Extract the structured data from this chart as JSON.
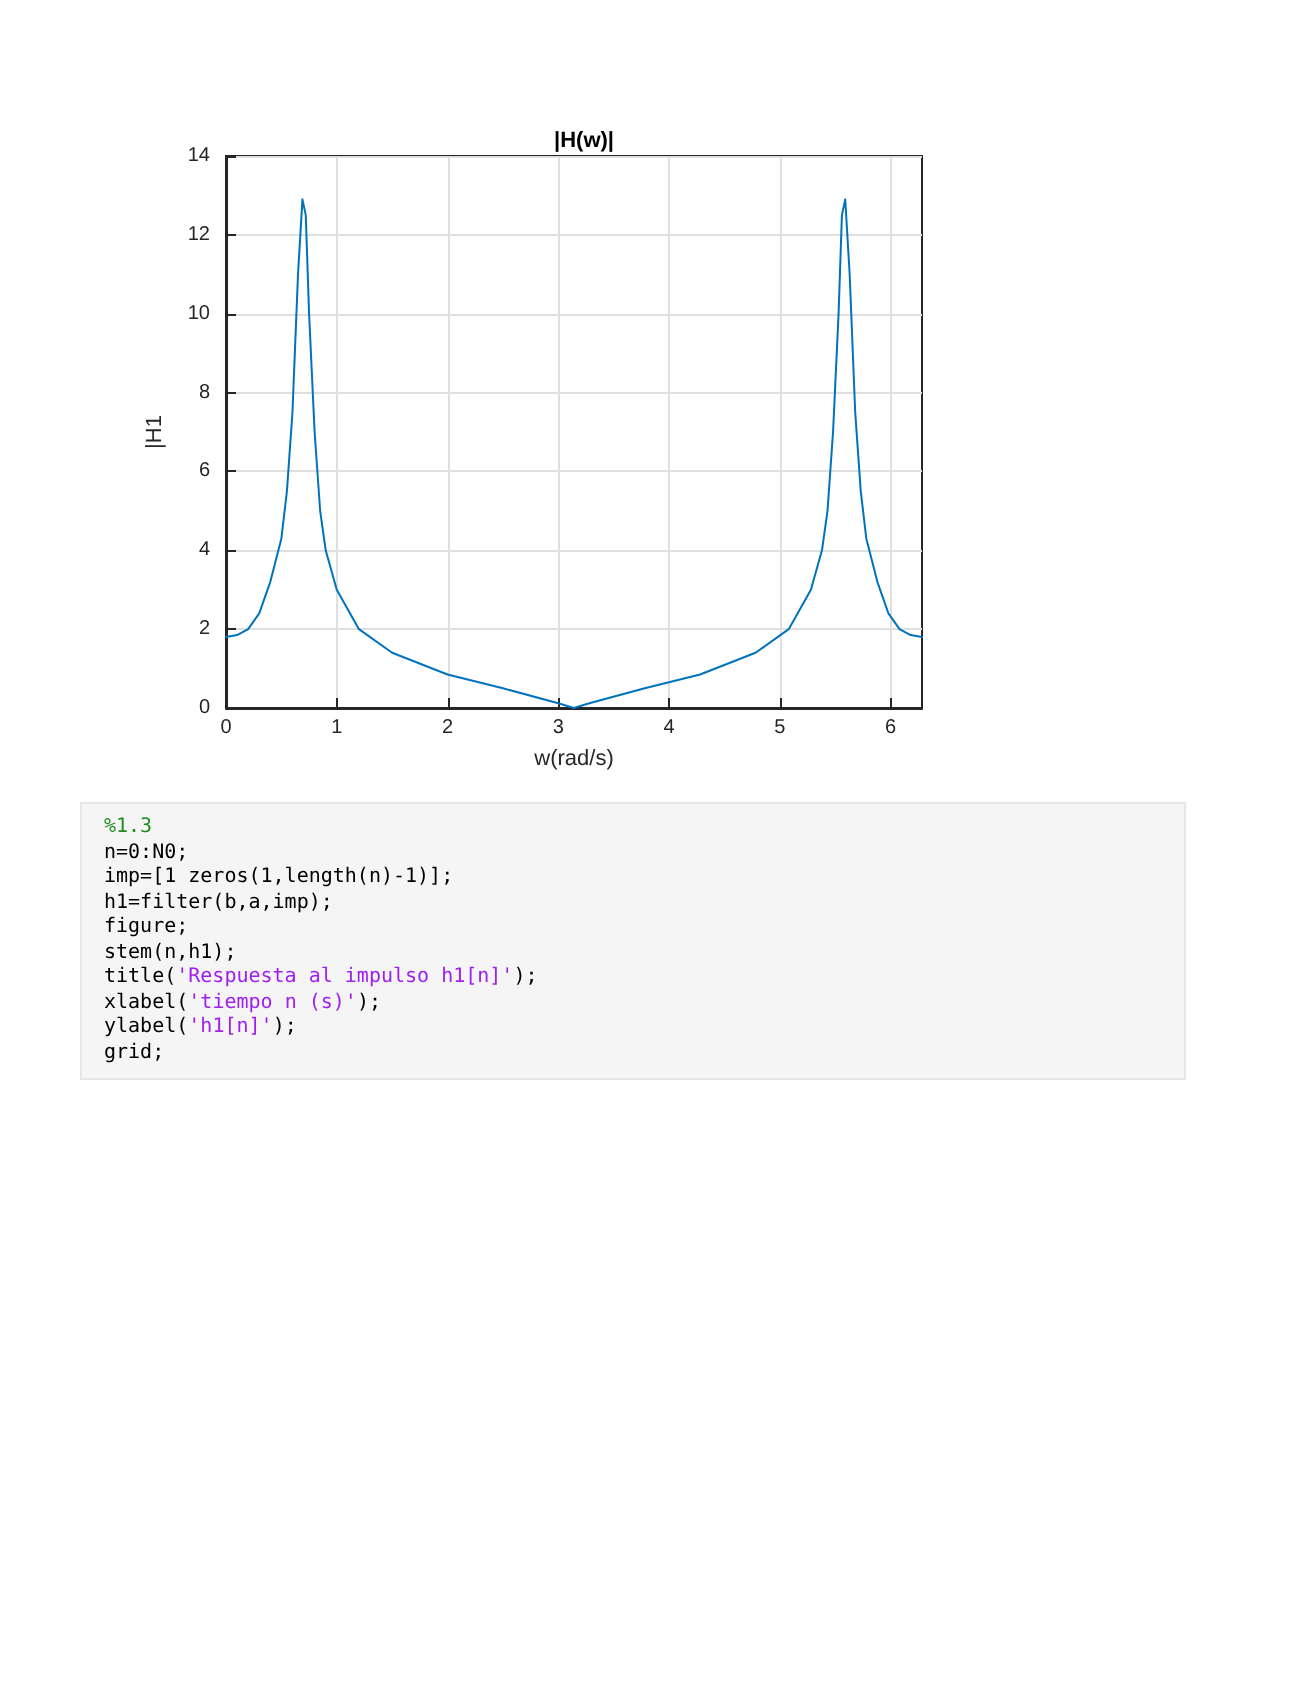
{
  "chart_data": {
    "type": "line",
    "title": "|H(w)|",
    "xlabel": "w(rad/s)",
    "ylabel": "|H1",
    "xlim": [
      0,
      6.283
    ],
    "xticks": [
      0,
      1,
      2,
      3,
      4,
      5,
      6
    ],
    "ylim": [
      0,
      14
    ],
    "yticks": [
      0,
      2,
      4,
      6,
      8,
      10,
      12,
      14
    ],
    "grid": true,
    "marker": "none",
    "line_style": "solid",
    "series": [
      {
        "color": "#0072bd",
        "x": [
          0,
          0.1,
          0.2,
          0.3,
          0.4,
          0.5,
          0.55,
          0.6,
          0.65,
          0.69,
          0.72,
          0.75,
          0.8,
          0.85,
          0.9,
          1.0,
          1.2,
          1.5,
          2.0,
          2.5,
          3.0,
          3.14,
          3.28,
          3.78,
          4.28,
          4.78,
          5.08,
          5.28,
          5.38,
          5.43,
          5.48,
          5.53,
          5.56,
          5.59,
          5.63,
          5.68,
          5.73,
          5.78,
          5.88,
          5.98,
          6.08,
          6.18,
          6.283
        ],
        "values": [
          1.8,
          1.85,
          2.0,
          2.4,
          3.2,
          4.3,
          5.5,
          7.5,
          11,
          12.9,
          12.5,
          10,
          7,
          5,
          4,
          3.0,
          2.0,
          1.4,
          0.85,
          0.5,
          0.12,
          0,
          0.12,
          0.5,
          0.85,
          1.4,
          2.0,
          3.0,
          4,
          5,
          7,
          10,
          12.5,
          12.9,
          11,
          7.5,
          5.5,
          4.3,
          3.2,
          2.4,
          2.0,
          1.85,
          1.8
        ]
      }
    ],
    "annotations": [
      "%1.3",
      "n=0:N0;",
      "imp=[1 zeros(1,length(n)-1)];",
      "h1=filter(b,a,imp);",
      "figure;",
      "stem(n,h1);",
      "title('Respuesta al impulso h1[n]');",
      "xlabel('tiempo n (s)');",
      "ylabel('h1[n]');",
      "grid;"
    ]
  }
}
